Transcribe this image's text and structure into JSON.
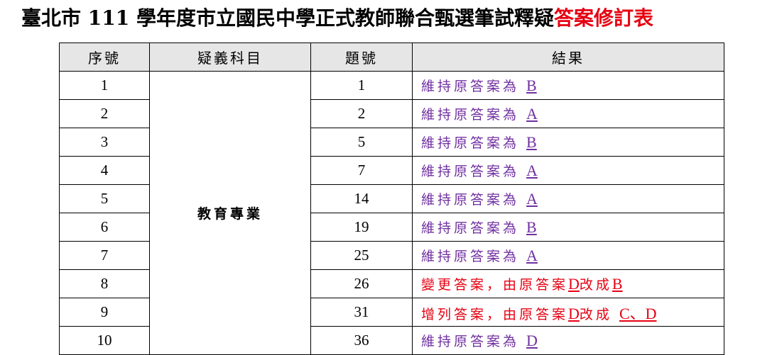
{
  "title": {
    "main": "臺北市 111 學年度市立國民中學正式教師聯合甄選筆試釋疑",
    "highlight": "答案修訂表"
  },
  "colors": {
    "keep": "#7030a0",
    "change": "#e60012",
    "header_bg": "#e6e6e6"
  },
  "headers": [
    "序號",
    "疑義科目",
    "題號",
    "結果"
  ],
  "subject": "教育專業",
  "rows": [
    {
      "seq": "1",
      "q": "1",
      "type": "keep",
      "parts": [
        {
          "t": "維持原答案為 "
        },
        {
          "t": "B",
          "u": true
        }
      ]
    },
    {
      "seq": "2",
      "q": "2",
      "type": "keep",
      "parts": [
        {
          "t": "維持原答案為 "
        },
        {
          "t": "A",
          "u": true
        }
      ]
    },
    {
      "seq": "3",
      "q": "5",
      "type": "keep",
      "parts": [
        {
          "t": "維持原答案為 "
        },
        {
          "t": "B",
          "u": true
        }
      ]
    },
    {
      "seq": "4",
      "q": "7",
      "type": "keep",
      "parts": [
        {
          "t": "維持原答案為 "
        },
        {
          "t": "A",
          "u": true
        }
      ]
    },
    {
      "seq": "5",
      "q": "14",
      "type": "keep",
      "parts": [
        {
          "t": "維持原答案為 "
        },
        {
          "t": "A",
          "u": true
        }
      ]
    },
    {
      "seq": "6",
      "q": "19",
      "type": "keep",
      "parts": [
        {
          "t": "維持原答案為 "
        },
        {
          "t": "B",
          "u": true
        }
      ]
    },
    {
      "seq": "7",
      "q": "25",
      "type": "keep",
      "parts": [
        {
          "t": "維持原答案為 "
        },
        {
          "t": "A",
          "u": true
        }
      ]
    },
    {
      "seq": "8",
      "q": "26",
      "type": "change",
      "parts": [
        {
          "t": "變更答案，由原答案"
        },
        {
          "t": "D",
          "u": true
        },
        {
          "t": "改成"
        },
        {
          "t": "B",
          "u": true
        }
      ]
    },
    {
      "seq": "9",
      "q": "31",
      "type": "change",
      "parts": [
        {
          "t": "增列答案，由原答案"
        },
        {
          "t": "D",
          "u": true
        },
        {
          "t": "改成 "
        },
        {
          "t": "C、D",
          "u": true
        }
      ]
    },
    {
      "seq": "10",
      "q": "36",
      "type": "keep",
      "parts": [
        {
          "t": "維持原答案為 "
        },
        {
          "t": "D",
          "u": true
        }
      ]
    }
  ]
}
